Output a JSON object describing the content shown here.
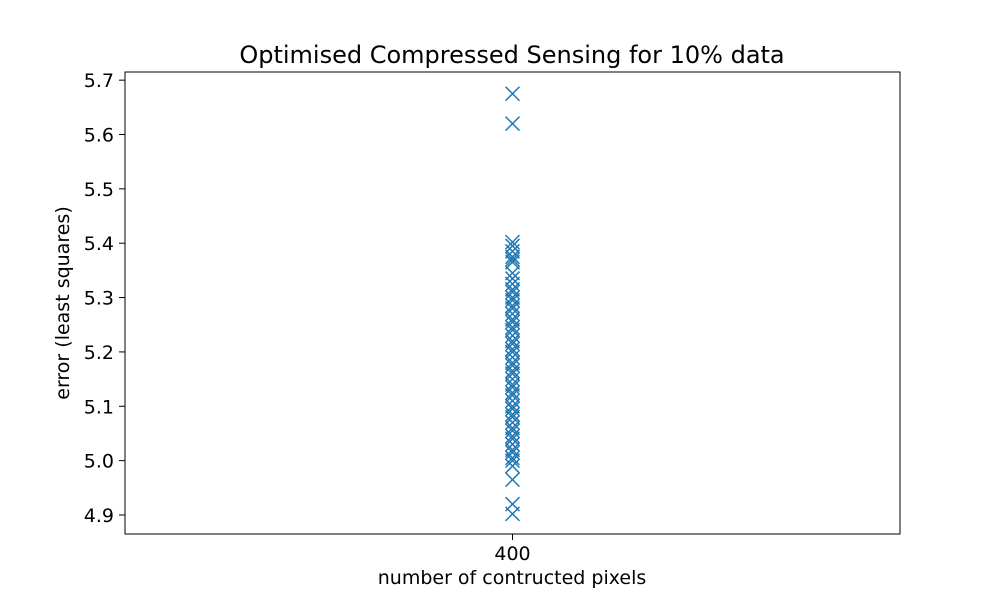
{
  "chart_data": {
    "type": "scatter",
    "title": "Optimised Compressed Sensing for 10% data",
    "xlabel": "number of contructed pixels",
    "ylabel": "error (least squares)",
    "x_ticks": [
      "400"
    ],
    "y_ticks": [
      "4.9",
      "5.0",
      "5.1",
      "5.2",
      "5.3",
      "5.4",
      "5.5",
      "5.6",
      "5.7"
    ],
    "xlim": [
      399.8,
      400.2
    ],
    "ylim": [
      4.865,
      5.715
    ],
    "marker": "x",
    "color": "#1f77b4",
    "grid": false,
    "series": [
      {
        "x": 400,
        "y": [
          5.675,
          5.62,
          5.402,
          5.395,
          5.385,
          5.375,
          5.37,
          5.365,
          5.345,
          5.335,
          5.325,
          5.315,
          5.31,
          5.3,
          5.295,
          5.285,
          5.28,
          5.27,
          5.26,
          5.255,
          5.245,
          5.24,
          5.23,
          5.22,
          5.215,
          5.205,
          5.2,
          5.19,
          5.18,
          5.175,
          5.165,
          5.16,
          5.15,
          5.14,
          5.135,
          5.125,
          5.12,
          5.11,
          5.1,
          5.095,
          5.085,
          5.08,
          5.07,
          5.06,
          5.055,
          5.045,
          5.04,
          5.03,
          5.02,
          5.015,
          5.005,
          5.0,
          4.99,
          4.965,
          4.92,
          4.902
        ]
      }
    ]
  }
}
